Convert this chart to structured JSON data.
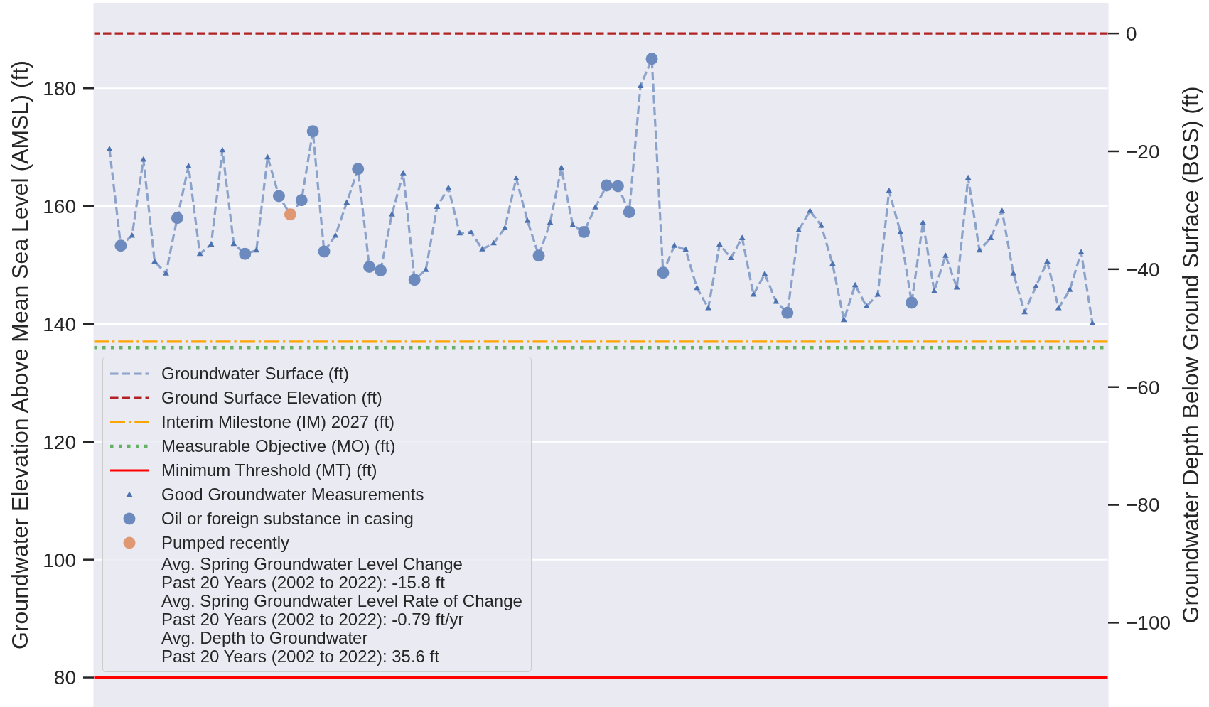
{
  "chart_data": {
    "type": "line",
    "ylabel": "Groundwater Elevation Above Mean Sea Level (AMSL) (ft)",
    "y2label": "Groundwater Depth Below Ground Surface (BGS) (ft)",
    "categories": [
      null,
      null,
      null,
      null,
      null,
      null,
      null,
      null,
      null,
      null,
      null,
      null,
      null,
      null,
      null,
      null,
      null,
      null,
      null,
      null,
      null,
      null,
      null,
      null,
      null,
      null,
      null,
      null,
      null,
      null,
      null,
      null,
      null,
      null,
      null,
      null,
      null,
      null,
      null,
      null,
      null,
      null,
      null,
      null,
      null,
      null,
      null,
      null,
      null,
      null,
      null,
      null,
      null,
      null,
      null,
      null,
      null,
      null,
      null,
      null,
      null,
      null,
      null,
      null,
      null,
      null,
      null,
      null,
      null,
      null,
      null,
      null,
      null,
      null,
      null,
      null,
      null,
      null,
      null,
      null,
      null,
      null,
      null,
      null,
      null,
      null,
      null,
      null
    ],
    "ylim": [
      75,
      194.5
    ],
    "yticks": [
      80,
      100,
      120,
      140,
      160,
      180
    ],
    "y2lim": [
      -114.3,
      5.2
    ],
    "y2ticks": [
      {
        "value": -100,
        "label": "−100"
      },
      {
        "value": -80,
        "label": "−80"
      },
      {
        "value": -60,
        "label": "−60"
      },
      {
        "value": -40,
        "label": "−40"
      },
      {
        "value": -20,
        "label": "−20"
      },
      0
    ],
    "grid": "y",
    "legend": "bottom left",
    "series": [
      {
        "name": "Groundwater Surface (ft)",
        "color": "#8ba2ca",
        "line_style": "dashed",
        "marker": "none",
        "values": [
          169.7,
          153.3,
          155.0,
          167.9,
          150.6,
          148.6,
          158.0,
          166.8,
          151.9,
          153.5,
          169.5,
          153.6,
          151.9,
          152.5,
          168.3,
          161.7,
          158.6,
          161.0,
          172.7,
          152.3,
          155.0,
          160.6,
          166.3,
          149.7,
          149.1,
          158.6,
          165.6,
          147.5,
          149.2,
          159.9,
          163.1,
          155.4,
          155.6,
          152.7,
          153.7,
          156.3,
          164.7,
          157.5,
          151.6,
          157.2,
          166.5,
          156.8,
          155.6,
          159.8,
          163.5,
          163.4,
          159.0,
          180.4,
          185.0,
          148.7,
          153.3,
          152.6,
          146.1,
          142.7,
          153.5,
          151.2,
          154.6,
          145.0,
          148.5,
          143.8,
          141.9,
          155.9,
          159.2,
          156.7,
          150.2,
          140.7,
          146.6,
          143.0,
          145.0,
          162.6,
          155.6,
          143.6,
          157.2,
          145.6,
          151.6,
          146.2,
          164.8,
          152.5,
          154.6,
          159.2,
          148.6,
          142.0,
          146.4,
          150.6,
          142.7,
          145.8,
          152.2,
          140.1
        ]
      },
      {
        "name": "Good Groundwater Measurements",
        "type": "scatter",
        "color": "#4c72b0",
        "marker": "triangle",
        "values": [
          169.7,
          null,
          155.0,
          167.9,
          150.6,
          148.6,
          null,
          166.8,
          151.9,
          153.5,
          169.5,
          153.6,
          null,
          152.5,
          168.3,
          null,
          null,
          null,
          null,
          null,
          155.0,
          160.6,
          null,
          null,
          null,
          158.6,
          165.6,
          null,
          149.2,
          159.9,
          163.1,
          155.4,
          155.6,
          152.7,
          153.7,
          156.3,
          164.7,
          157.5,
          null,
          157.2,
          166.5,
          156.8,
          null,
          159.8,
          null,
          null,
          null,
          180.4,
          null,
          null,
          153.3,
          152.6,
          146.1,
          142.7,
          153.5,
          151.2,
          154.6,
          145.0,
          148.5,
          143.8,
          null,
          155.9,
          159.2,
          156.7,
          150.2,
          140.7,
          146.6,
          143.0,
          145.0,
          162.6,
          155.6,
          null,
          157.2,
          145.6,
          151.6,
          146.2,
          164.8,
          152.5,
          154.6,
          159.2,
          148.6,
          142.0,
          146.4,
          150.6,
          142.7,
          145.8,
          152.2,
          140.1
        ]
      },
      {
        "name": "Oil or foreign substance in casing",
        "type": "scatter",
        "color": "#6c8abd",
        "marker": "circle",
        "values": [
          null,
          153.3,
          null,
          null,
          null,
          null,
          158.0,
          null,
          null,
          null,
          null,
          null,
          151.9,
          null,
          null,
          161.7,
          null,
          161.0,
          172.7,
          152.3,
          null,
          null,
          166.3,
          149.7,
          149.1,
          null,
          null,
          147.5,
          null,
          null,
          null,
          null,
          null,
          null,
          null,
          null,
          null,
          null,
          151.6,
          null,
          null,
          null,
          155.6,
          null,
          163.5,
          163.4,
          159.0,
          null,
          185.0,
          148.7,
          null,
          null,
          null,
          null,
          null,
          null,
          null,
          null,
          null,
          null,
          141.9,
          null,
          null,
          null,
          null,
          null,
          null,
          null,
          null,
          null,
          null,
          143.6,
          null,
          null,
          null,
          null,
          null,
          null,
          null,
          null,
          null,
          null,
          null,
          null,
          null,
          null,
          null,
          null
        ]
      },
      {
        "name": "Pumped recently",
        "type": "scatter",
        "color": "#e09872",
        "marker": "circle",
        "values": [
          null,
          null,
          null,
          null,
          null,
          null,
          null,
          null,
          null,
          null,
          null,
          null,
          null,
          null,
          null,
          null,
          158.6,
          null,
          null,
          null,
          null,
          null,
          null,
          null,
          null,
          null,
          null,
          null,
          null,
          null,
          null,
          null,
          null,
          null,
          null,
          null,
          null,
          null,
          null,
          null,
          null,
          null,
          null,
          null,
          null,
          null,
          null,
          null,
          null,
          null,
          null,
          null,
          null,
          null,
          null,
          null,
          null,
          null,
          null,
          null,
          null,
          null,
          null,
          null,
          null,
          null,
          null,
          null,
          null,
          null,
          null,
          null,
          null,
          null,
          null,
          null,
          null,
          null,
          null,
          null,
          null,
          null,
          null,
          null,
          null,
          null,
          null,
          null
        ]
      }
    ],
    "ref_lines": [
      {
        "axis": "y2",
        "value": 0,
        "label": "Ground Surface Elevation (ft)",
        "color": "#b22222",
        "line_style": "dashed"
      },
      {
        "axis": "y",
        "value": 137,
        "label": "Interim Milestone (IM) 2027 (ft)",
        "color": "#ffa500",
        "line_style": "dashdot"
      },
      {
        "axis": "y",
        "value": 136,
        "label": "Measurable Objective (MO) (ft)",
        "color": "#64b064",
        "line_style": "dotted"
      },
      {
        "axis": "y",
        "value": 80,
        "label": "Minimum Threshold (MT) (ft)",
        "color": "#ff0000",
        "line_style": "solid"
      }
    ],
    "annotations": [
      "Avg. Spring Groundwater Level Change\nPast 20 Years (2002 to 2022): -15.8 ft",
      "Avg. Spring Groundwater Level Rate of Change\nPast 20 Years (2002 to 2022): -0.79 ft/yr",
      "Avg. Depth to Groundwater\nPast 20 Years (2002 to 2022): 35.6 ft"
    ]
  }
}
